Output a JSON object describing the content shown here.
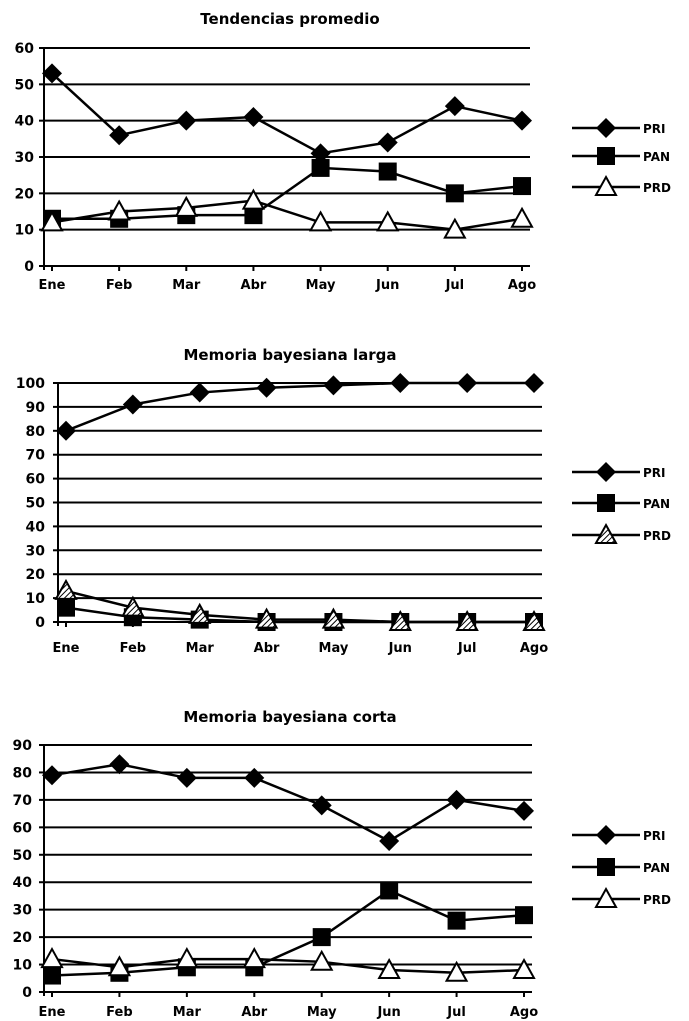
{
  "chart_data": [
    {
      "type": "line",
      "title": "Tendencias promedio",
      "categories": [
        "Ene",
        "Feb",
        "Mar",
        "Abr",
        "May",
        "Jun",
        "Jul",
        "Ago"
      ],
      "ylim": [
        0,
        60
      ],
      "yticks": [
        0,
        10,
        20,
        30,
        40,
        50,
        60
      ],
      "grid": true,
      "legend": "right",
      "series": [
        {
          "name": "PRI",
          "marker": "diamond",
          "values": [
            53,
            36,
            40,
            41,
            31,
            34,
            44,
            40
          ]
        },
        {
          "name": "PAN",
          "marker": "square",
          "values": [
            13,
            13,
            14,
            14,
            27,
            26,
            20,
            22
          ]
        },
        {
          "name": "PRD",
          "marker": "triangle-open",
          "values": [
            12,
            15,
            16,
            18,
            12,
            12,
            10,
            13
          ]
        }
      ]
    },
    {
      "type": "line",
      "title": "Memoria bayesiana larga",
      "categories": [
        "Ene",
        "Feb",
        "Mar",
        "Abr",
        "May",
        "Jun",
        "Jul",
        "Ago"
      ],
      "ylim": [
        0,
        100
      ],
      "yticks": [
        0,
        10,
        20,
        30,
        40,
        50,
        60,
        70,
        80,
        90,
        100
      ],
      "grid": true,
      "legend": "right",
      "series": [
        {
          "name": "PRI",
          "marker": "diamond",
          "values": [
            80,
            91,
            96,
            98,
            99,
            100,
            100,
            100
          ]
        },
        {
          "name": "PAN",
          "marker": "square",
          "values": [
            6,
            2,
            1,
            0,
            0,
            0,
            0,
            0
          ]
        },
        {
          "name": "PRD",
          "marker": "triangle-hatched",
          "values": [
            13,
            6,
            3,
            1,
            1,
            0,
            0,
            0
          ]
        }
      ]
    },
    {
      "type": "line",
      "title": "Memoria bayesiana corta",
      "categories": [
        "Ene",
        "Feb",
        "Mar",
        "Abr",
        "May",
        "Jun",
        "Jul",
        "Ago"
      ],
      "ylim": [
        0,
        90
      ],
      "yticks": [
        0,
        10,
        20,
        30,
        40,
        50,
        60,
        70,
        80,
        90
      ],
      "grid": true,
      "legend": "right",
      "series": [
        {
          "name": "PRI",
          "marker": "diamond",
          "values": [
            79,
            83,
            78,
            78,
            68,
            55,
            70,
            66
          ]
        },
        {
          "name": "PAN",
          "marker": "square",
          "values": [
            6,
            7,
            9,
            9,
            20,
            37,
            26,
            28
          ]
        },
        {
          "name": "PRD",
          "marker": "triangle-open",
          "values": [
            12,
            9,
            12,
            12,
            11,
            8,
            7,
            8
          ]
        }
      ]
    }
  ]
}
